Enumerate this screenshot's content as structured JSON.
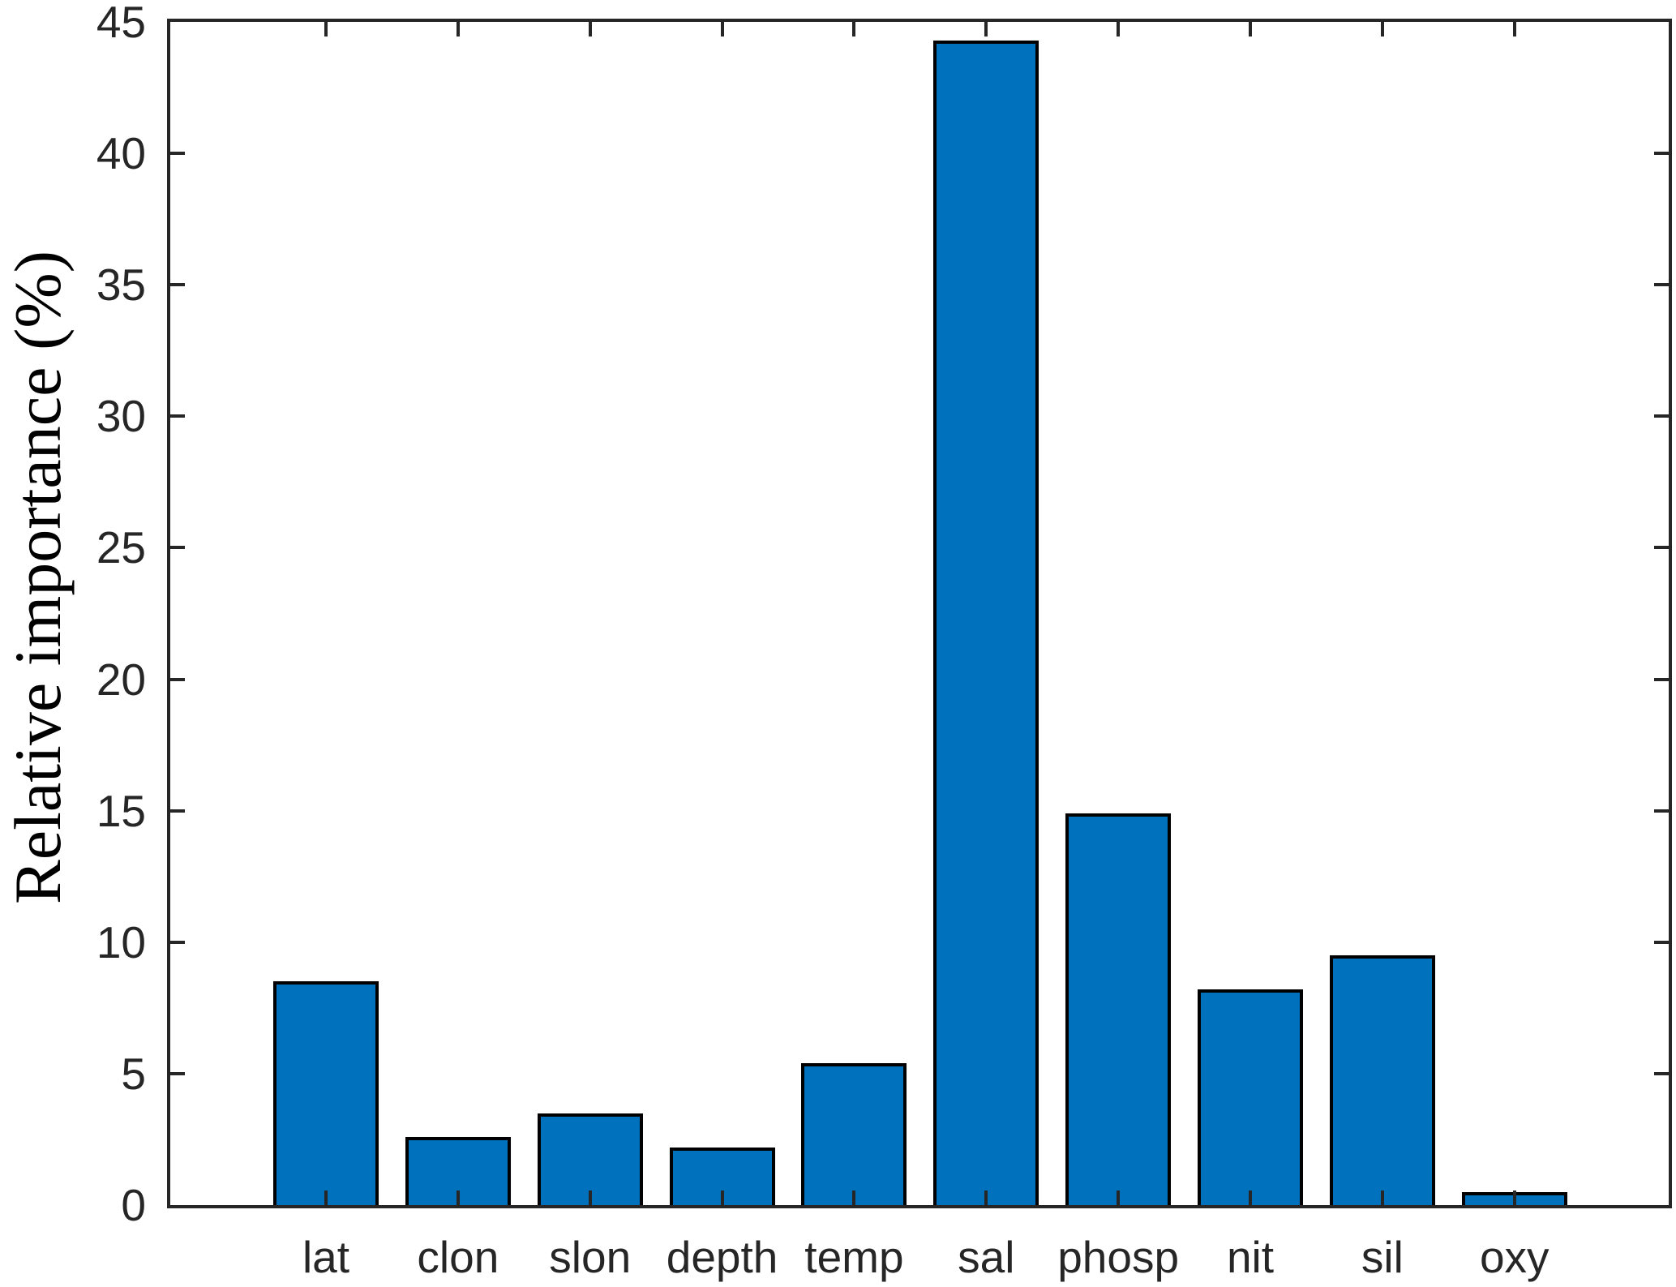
{
  "chart_data": {
    "type": "bar",
    "title": "",
    "xlabel": "",
    "ylabel": "Relative importance (%)",
    "categories": [
      "lat",
      "clon",
      "slon",
      "depth",
      "temp",
      "sal",
      "phosp",
      "nit",
      "sil",
      "oxy"
    ],
    "values": [
      8.5,
      2.6,
      3.5,
      2.2,
      5.4,
      44.3,
      14.9,
      8.2,
      9.5,
      0.5
    ],
    "ylim": [
      0,
      45
    ],
    "yticks": [
      0,
      5,
      10,
      15,
      20,
      25,
      30,
      35,
      40,
      45
    ],
    "grid": false,
    "legend_position": "none",
    "bar_color": "#0072BD",
    "bar_edge_color": "#000000",
    "axis_color": "#262626",
    "tick_style": "inward-box"
  }
}
